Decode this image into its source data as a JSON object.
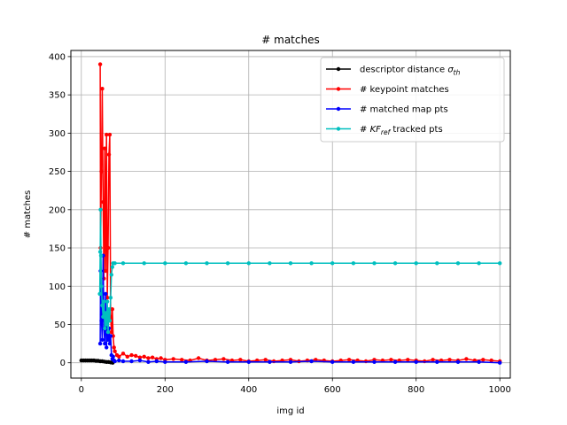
{
  "chart_data": {
    "type": "line",
    "title": "# matches",
    "xlabel": "img id",
    "ylabel": "# matches",
    "xlim": [
      -25,
      1025
    ],
    "ylim": [
      -20,
      408
    ],
    "xticks": [
      0,
      200,
      400,
      600,
      800,
      1000
    ],
    "yticks": [
      0,
      50,
      100,
      150,
      200,
      250,
      300,
      350,
      400
    ],
    "grid": true,
    "legend": {
      "position": "top-right",
      "entries": [
        {
          "text": "descriptor distance ",
          "math": "σ",
          "sub": "th",
          "color": "#000000"
        },
        {
          "text": "# keypoint matches",
          "color": "#ff0000"
        },
        {
          "text": "# matched map pts",
          "color": "#0000ff"
        },
        {
          "text": "# ",
          "math": "KF",
          "sub": "ref",
          "suffix": "  tracked pts",
          "color": "#00bfbf"
        }
      ]
    },
    "series": [
      {
        "name": "descriptor distance σth",
        "color": "#000000",
        "marker": "dot",
        "note": "approx. 3 for img id 0-45, then decays toward 0 by ~75",
        "points": [
          [
            0,
            3
          ],
          [
            5,
            3
          ],
          [
            10,
            3
          ],
          [
            15,
            3
          ],
          [
            20,
            3
          ],
          [
            25,
            3
          ],
          [
            30,
            3
          ],
          [
            35,
            2.5
          ],
          [
            40,
            2.5
          ],
          [
            45,
            2
          ],
          [
            50,
            2
          ],
          [
            55,
            1.5
          ],
          [
            60,
            1
          ],
          [
            65,
            1
          ],
          [
            70,
            0.5
          ],
          [
            75,
            0
          ]
        ]
      },
      {
        "name": "# keypoint matches",
        "color": "#ff0000",
        "marker": "dot",
        "points": [
          [
            45,
            390
          ],
          [
            46,
            150
          ],
          [
            48,
            250
          ],
          [
            50,
            358
          ],
          [
            52,
            210
          ],
          [
            54,
            110
          ],
          [
            56,
            280
          ],
          [
            58,
            120
          ],
          [
            60,
            298
          ],
          [
            62,
            85
          ],
          [
            64,
            150
          ],
          [
            66,
            272
          ],
          [
            68,
            298
          ],
          [
            70,
            60
          ],
          [
            72,
            40
          ],
          [
            74,
            70
          ],
          [
            76,
            35
          ],
          [
            78,
            20
          ],
          [
            80,
            15
          ],
          [
            85,
            10
          ],
          [
            90,
            8
          ],
          [
            100,
            12
          ],
          [
            110,
            8
          ],
          [
            120,
            10
          ],
          [
            130,
            9
          ],
          [
            140,
            7
          ],
          [
            150,
            8
          ],
          [
            160,
            6
          ],
          [
            170,
            7
          ],
          [
            180,
            5
          ],
          [
            190,
            6
          ],
          [
            200,
            4
          ],
          [
            220,
            5
          ],
          [
            240,
            4
          ],
          [
            260,
            3
          ],
          [
            280,
            6
          ],
          [
            300,
            3
          ],
          [
            320,
            4
          ],
          [
            340,
            5
          ],
          [
            360,
            3
          ],
          [
            380,
            4
          ],
          [
            400,
            2
          ],
          [
            420,
            3
          ],
          [
            440,
            4
          ],
          [
            460,
            2
          ],
          [
            480,
            3
          ],
          [
            500,
            4
          ],
          [
            520,
            2
          ],
          [
            540,
            3
          ],
          [
            560,
            4
          ],
          [
            580,
            3
          ],
          [
            600,
            2
          ],
          [
            620,
            3
          ],
          [
            640,
            4
          ],
          [
            660,
            3
          ],
          [
            680,
            2
          ],
          [
            700,
            4
          ],
          [
            720,
            3
          ],
          [
            740,
            4
          ],
          [
            760,
            3
          ],
          [
            780,
            4
          ],
          [
            800,
            3
          ],
          [
            820,
            2
          ],
          [
            840,
            4
          ],
          [
            860,
            3
          ],
          [
            880,
            4
          ],
          [
            900,
            3
          ],
          [
            920,
            5
          ],
          [
            940,
            3
          ],
          [
            960,
            4
          ],
          [
            980,
            3
          ],
          [
            1000,
            2
          ]
        ]
      },
      {
        "name": "# matched map pts",
        "color": "#0000ff",
        "marker": "dot",
        "points": [
          [
            45,
            25
          ],
          [
            46,
            120
          ],
          [
            48,
            55
          ],
          [
            50,
            30
          ],
          [
            52,
            140
          ],
          [
            54,
            45
          ],
          [
            56,
            25
          ],
          [
            58,
            90
          ],
          [
            60,
            20
          ],
          [
            62,
            60
          ],
          [
            64,
            30
          ],
          [
            66,
            45
          ],
          [
            68,
            25
          ],
          [
            70,
            35
          ],
          [
            72,
            10
          ],
          [
            74,
            5
          ],
          [
            76,
            8
          ],
          [
            78,
            3
          ],
          [
            80,
            2
          ],
          [
            90,
            3
          ],
          [
            100,
            2
          ],
          [
            120,
            2
          ],
          [
            140,
            3
          ],
          [
            160,
            1
          ],
          [
            180,
            2
          ],
          [
            200,
            1
          ],
          [
            250,
            1
          ],
          [
            300,
            2
          ],
          [
            350,
            1
          ],
          [
            400,
            1
          ],
          [
            450,
            1
          ],
          [
            500,
            1
          ],
          [
            550,
            2
          ],
          [
            600,
            1
          ],
          [
            650,
            1
          ],
          [
            700,
            1
          ],
          [
            750,
            1
          ],
          [
            800,
            1
          ],
          [
            850,
            1
          ],
          [
            900,
            1
          ],
          [
            950,
            1
          ],
          [
            1000,
            0
          ]
        ]
      },
      {
        "name": "# KFref tracked pts",
        "color": "#00bfbf",
        "marker": "dot",
        "points": [
          [
            44,
            90
          ],
          [
            45,
            145
          ],
          [
            46,
            200
          ],
          [
            47,
            140
          ],
          [
            48,
            100
          ],
          [
            50,
            75
          ],
          [
            52,
            60
          ],
          [
            54,
            80
          ],
          [
            56,
            45
          ],
          [
            58,
            65
          ],
          [
            60,
            50
          ],
          [
            62,
            80
          ],
          [
            64,
            40
          ],
          [
            66,
            70
          ],
          [
            68,
            55
          ],
          [
            70,
            85
          ],
          [
            72,
            115
          ],
          [
            74,
            125
          ],
          [
            76,
            130
          ],
          [
            80,
            130
          ],
          [
            100,
            130
          ],
          [
            150,
            130
          ],
          [
            200,
            130
          ],
          [
            250,
            130
          ],
          [
            300,
            130
          ],
          [
            350,
            130
          ],
          [
            400,
            130
          ],
          [
            450,
            130
          ],
          [
            500,
            130
          ],
          [
            550,
            130
          ],
          [
            600,
            130
          ],
          [
            650,
            130
          ],
          [
            700,
            130
          ],
          [
            750,
            130
          ],
          [
            800,
            130
          ],
          [
            850,
            130
          ],
          [
            900,
            130
          ],
          [
            950,
            130
          ],
          [
            1000,
            130
          ]
        ]
      }
    ]
  }
}
